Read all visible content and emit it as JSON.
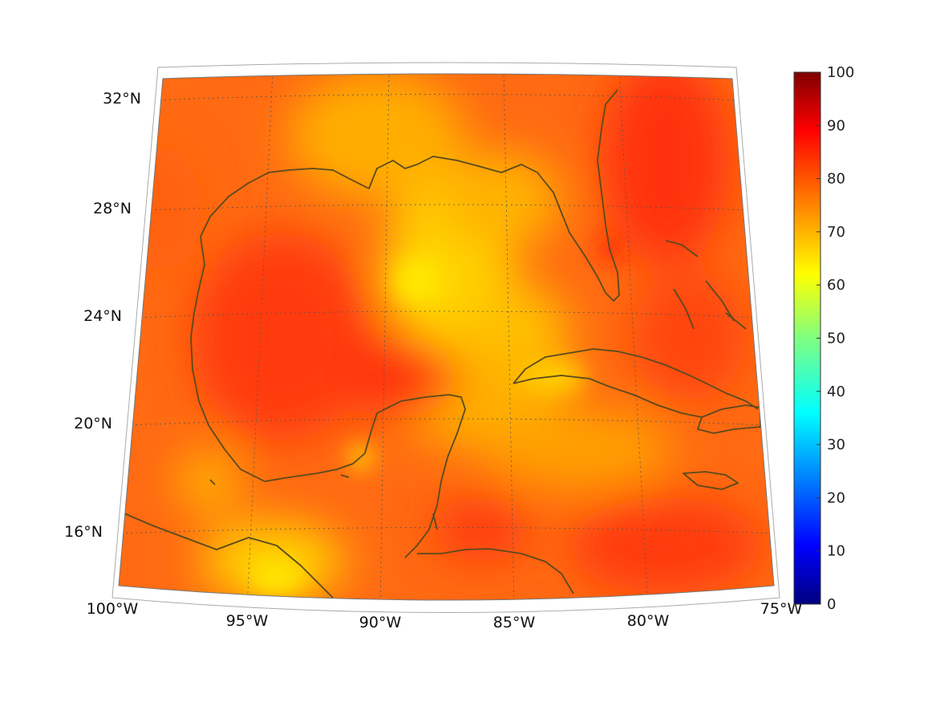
{
  "map": {
    "projection": "conic",
    "extent": {
      "lon": [
        -100,
        -75
      ],
      "lat": [
        14,
        33
      ]
    },
    "lat_labels": [
      "32°N",
      "28°N",
      "24°N",
      "20°N",
      "16°N"
    ],
    "lon_labels": [
      "100°W",
      "95°W",
      "90°W",
      "85°W",
      "80°W",
      "75°W"
    ],
    "grid": "dotted",
    "coastline_color": "#5a4a1e"
  },
  "colorbar": {
    "colormap": "jet",
    "min": 0,
    "max": 100,
    "ticks": [
      "0",
      "10",
      "20",
      "30",
      "40",
      "50",
      "60",
      "70",
      "80",
      "90",
      "100"
    ]
  }
}
